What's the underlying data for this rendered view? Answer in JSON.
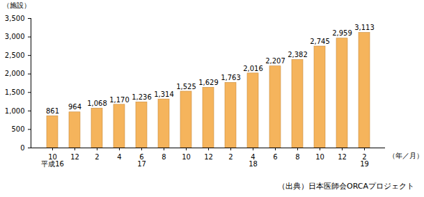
{
  "chart_data": {
    "type": "bar",
    "caption": "（出典）日本医師会ORCAプロジェクト",
    "y_label": "（施設）",
    "x_label": "（年／月）",
    "categories": [
      "10\n平成16",
      "12",
      "2",
      "4",
      "6\n17",
      "8",
      "10",
      "12",
      "2",
      "4\n18",
      "6",
      "8",
      "10",
      "12",
      "2\n19"
    ],
    "values": [
      861,
      964,
      1068,
      1170,
      1236,
      1314,
      1525,
      1629,
      1763,
      2016,
      2207,
      2382,
      2745,
      2959,
      3113
    ],
    "value_labels": [
      "861",
      "964",
      "1,068",
      "1,170",
      "1,236",
      "1,314",
      "1,525",
      "1,629",
      "1,763",
      "2,016",
      "2,207",
      "2,382",
      "2,745",
      "2,959",
      "3,113"
    ],
    "data_labels": true,
    "color": "#f5b45c",
    "ylim": [
      0,
      3500
    ],
    "yticks": [
      0,
      500,
      {
        "value": 1000,
        "label": "1,000"
      },
      {
        "value": 1500,
        "label": "1,500"
      },
      {
        "value": 2000,
        "label": "2,000"
      },
      {
        "value": 2500,
        "label": "2,500"
      },
      {
        "value": 3000,
        "label": "3,000"
      },
      {
        "value": 3500,
        "label": "3,500"
      }
    ],
    "grid": false
  }
}
